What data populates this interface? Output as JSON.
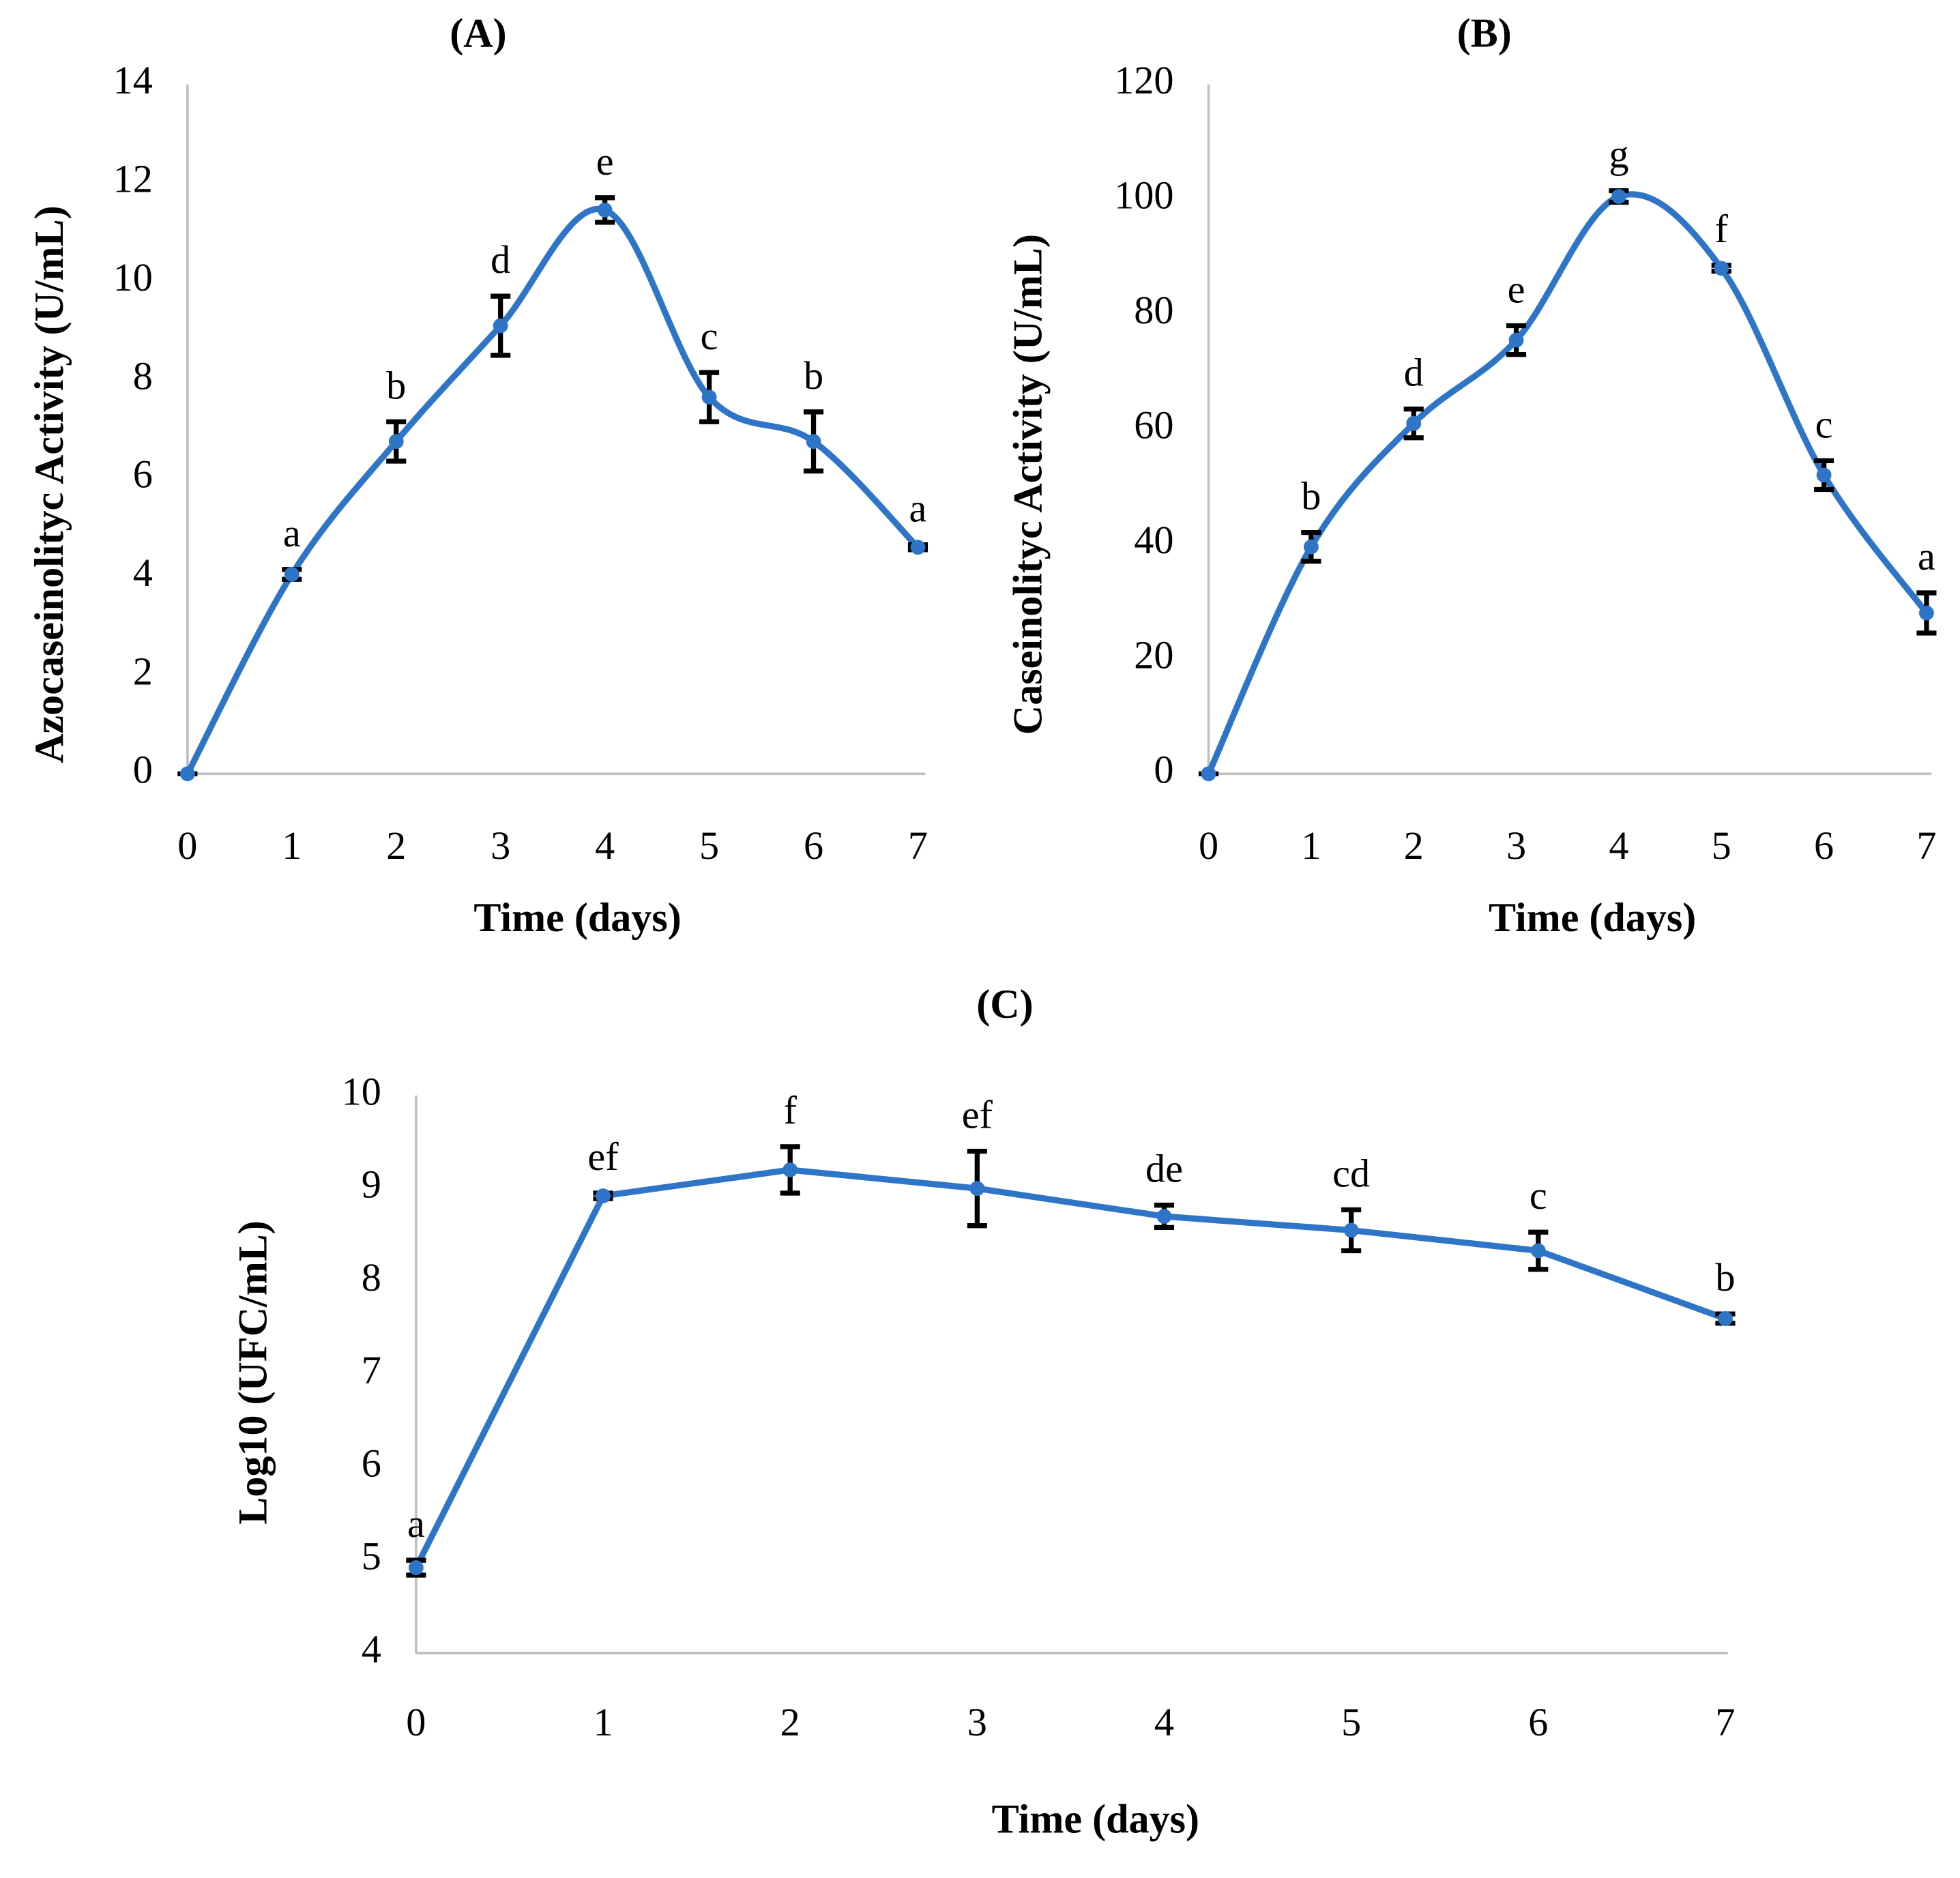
{
  "chart_data": [
    {
      "type": "line",
      "title": "(A)",
      "x_label": "Time (days)",
      "y_label": "Azocaseinolityc Activity (U/mL)",
      "x": [
        0,
        1,
        2,
        3,
        4,
        5,
        6,
        7
      ],
      "xlim": [
        0,
        7
      ],
      "xticks": [
        0,
        1,
        2,
        3,
        4,
        5,
        6,
        7
      ],
      "ylim": [
        0,
        14
      ],
      "yticks": [
        0,
        2,
        4,
        6,
        8,
        10,
        12,
        14
      ],
      "smooth": true,
      "color": "#2e75c8",
      "values": [
        0,
        4.05,
        6.75,
        9.1,
        11.45,
        7.65,
        6.75,
        4.6
      ],
      "errors": [
        0,
        0.1,
        0.4,
        0.6,
        0.25,
        0.5,
        0.6,
        0.05
      ],
      "annotations": [
        null,
        "a",
        "b",
        "d",
        "e",
        "c",
        "b",
        "a"
      ]
    },
    {
      "type": "line",
      "title": "(B)",
      "x_label": "Time (days)",
      "y_label": "Caseinolityc Activity (U/mL)",
      "x": [
        0,
        1,
        2,
        3,
        4,
        5,
        6,
        7
      ],
      "xlim": [
        0,
        7
      ],
      "xticks": [
        0,
        1,
        2,
        3,
        4,
        5,
        6,
        7
      ],
      "ylim": [
        0,
        120
      ],
      "yticks": [
        0,
        20,
        40,
        60,
        80,
        100,
        120
      ],
      "smooth": true,
      "color": "#2e75c8",
      "values": [
        0,
        39.5,
        61,
        75.5,
        100.5,
        88,
        52,
        28
      ],
      "errors": [
        0,
        2.5,
        2.5,
        2.5,
        1,
        0.5,
        2.5,
        3.5
      ],
      "annotations": [
        null,
        "b",
        "d",
        "e",
        "g",
        "f",
        "c",
        "a"
      ]
    },
    {
      "type": "line",
      "title": "(C)",
      "x_label": "Time (days)",
      "y_label": "Log10 (UFC/mL)",
      "x": [
        0,
        1,
        2,
        3,
        4,
        5,
        6,
        7
      ],
      "xlim": [
        0,
        7
      ],
      "xticks": [
        0,
        1,
        2,
        3,
        4,
        5,
        6,
        7
      ],
      "ylim": [
        4,
        10
      ],
      "yticks": [
        4,
        5,
        6,
        7,
        8,
        9,
        10
      ],
      "smooth": false,
      "color": "#2e75c8",
      "values": [
        4.92,
        8.92,
        9.2,
        9.0,
        8.7,
        8.55,
        8.33,
        7.6
      ],
      "errors": [
        0.08,
        0.03,
        0.25,
        0.4,
        0.12,
        0.22,
        0.2,
        0.05
      ],
      "annotations": [
        "a",
        "ef",
        "f",
        "ef",
        "de",
        "cd",
        "c",
        "b"
      ]
    }
  ]
}
